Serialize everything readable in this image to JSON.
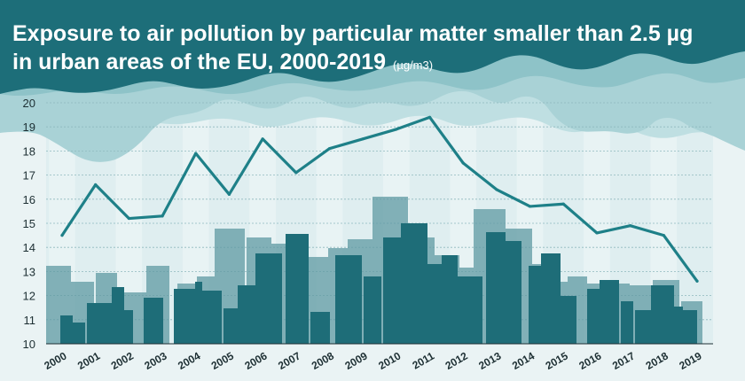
{
  "chart_data": {
    "type": "line",
    "title_line1": "Exposure to air pollution by particular matter smaller than 2.5 µg",
    "title_line2": "in urban areas of the EU, 2000-2019",
    "unit": "(µg/m3)",
    "categories": [
      "2000",
      "2001",
      "2002",
      "2003",
      "2004",
      "2005",
      "2006",
      "2007",
      "2008",
      "2009",
      "2010",
      "2011",
      "2012",
      "2013",
      "2014",
      "2015",
      "2016",
      "2017",
      "2018",
      "2019"
    ],
    "series": [
      {
        "name": "PM2.5 exposure",
        "values": [
          14.5,
          16.6,
          15.2,
          15.3,
          17.9,
          16.2,
          18.5,
          17.1,
          18.1,
          18.5,
          18.9,
          19.4,
          17.5,
          16.4,
          15.7,
          15.8,
          14.6,
          14.9,
          14.5,
          12.6
        ]
      }
    ],
    "ylim": [
      10,
      20
    ],
    "yticks": [
      "10",
      "11",
      "12",
      "13",
      "14",
      "15",
      "16",
      "17",
      "18",
      "19",
      "20"
    ],
    "grid": true,
    "colors": {
      "line": "#1e8088",
      "header": "#1d6e79",
      "cloud": "#a9d2d6",
      "dark_building": "#1e6d78",
      "light_building": "#5f9aa3"
    }
  }
}
